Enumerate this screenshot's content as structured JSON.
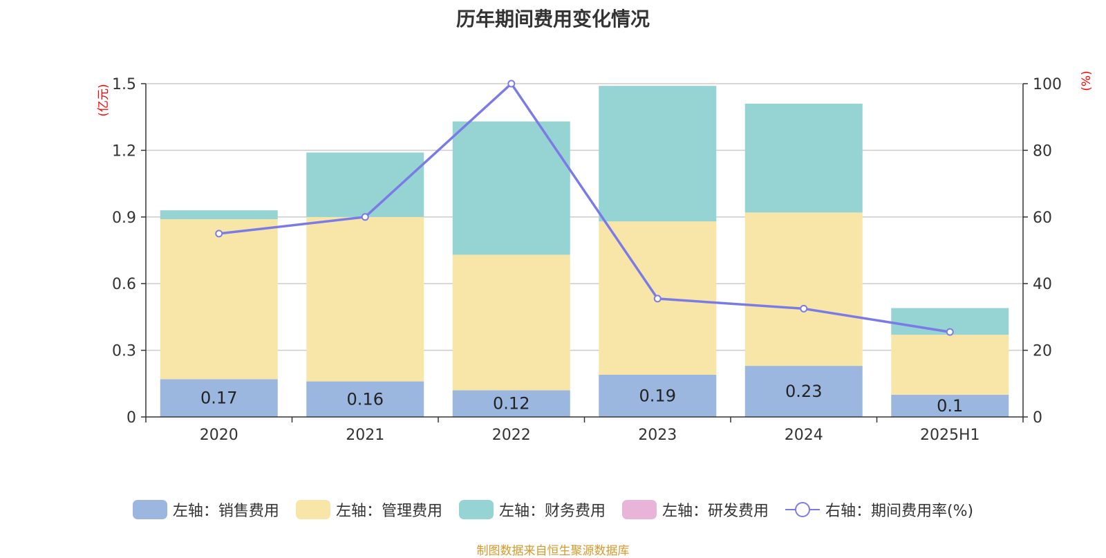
{
  "title": "历年期间费用变化情况",
  "source_note": "制图数据来自恒生聚源数据库",
  "left_axis_unit": "(亿元)",
  "right_axis_unit": "(%)",
  "colors": {
    "sales": "#9bb7e0",
    "admin": "#f7e6a7",
    "finance": "#96d3d3",
    "rnd": "#e8b4d8",
    "rate": "#7b7be8"
  },
  "legend": [
    {
      "label": "左轴：销售费用",
      "kind": "swatch",
      "color_key": "sales"
    },
    {
      "label": "左轴：管理费用",
      "kind": "swatch",
      "color_key": "admin"
    },
    {
      "label": "左轴：财务费用",
      "kind": "swatch",
      "color_key": "finance"
    },
    {
      "label": "左轴：研发费用",
      "kind": "swatch",
      "color_key": "rnd"
    },
    {
      "label": "右轴：期间费用率(%)",
      "kind": "line",
      "color_key": "rate"
    }
  ],
  "chart_data": {
    "type": "bar",
    "stacked": true,
    "categories": [
      "2020",
      "2021",
      "2022",
      "2023",
      "2024",
      "2025H1"
    ],
    "left_axis": {
      "ticks": [
        "0",
        "0.3",
        "0.6",
        "0.9",
        "1.2",
        "1.5"
      ],
      "ylim": [
        0,
        1.5
      ]
    },
    "right_axis": {
      "ticks": [
        "0",
        "20",
        "40",
        "60",
        "80",
        "100"
      ],
      "ylim": [
        0,
        100
      ]
    },
    "series": [
      {
        "name": "左轴：销售费用",
        "color_key": "sales",
        "values": [
          0.17,
          0.16,
          0.12,
          0.19,
          0.23,
          0.1
        ],
        "labels": [
          "0.17",
          "0.16",
          "0.12",
          "0.19",
          "0.23",
          "0.1"
        ]
      },
      {
        "name": "左轴：管理费用",
        "color_key": "admin",
        "values": [
          0.72,
          0.74,
          0.61,
          0.69,
          0.69,
          0.27
        ]
      },
      {
        "name": "左轴：财务费用",
        "color_key": "finance",
        "values": [
          0.04,
          0.29,
          0.6,
          0.61,
          0.49,
          0.12
        ]
      },
      {
        "name": "左轴：研发费用",
        "color_key": "rnd",
        "values": [
          0,
          0,
          0,
          0,
          0,
          0
        ]
      }
    ],
    "line_series": {
      "name": "右轴：期间费用率(%)",
      "color_key": "rate",
      "axis": "right",
      "values": [
        55,
        60,
        100,
        35.5,
        32.5,
        25.5
      ]
    },
    "grid": true,
    "legend_position": "bottom"
  }
}
